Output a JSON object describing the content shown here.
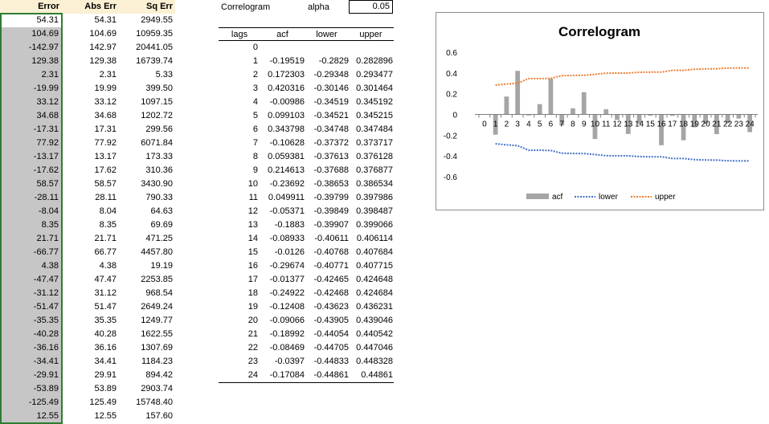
{
  "error_table": {
    "headers": {
      "error": "Error",
      "abs_err": "Abs Err",
      "sq_err": "Sq Err"
    },
    "rows": [
      {
        "error": "54.31",
        "abs": "54.31",
        "sq": "2949.55"
      },
      {
        "error": "104.69",
        "abs": "104.69",
        "sq": "10959.35"
      },
      {
        "error": "-142.97",
        "abs": "142.97",
        "sq": "20441.05"
      },
      {
        "error": "129.38",
        "abs": "129.38",
        "sq": "16739.74"
      },
      {
        "error": "2.31",
        "abs": "2.31",
        "sq": "5.33"
      },
      {
        "error": "-19.99",
        "abs": "19.99",
        "sq": "399.50"
      },
      {
        "error": "33.12",
        "abs": "33.12",
        "sq": "1097.15"
      },
      {
        "error": "34.68",
        "abs": "34.68",
        "sq": "1202.72"
      },
      {
        "error": "-17.31",
        "abs": "17.31",
        "sq": "299.56"
      },
      {
        "error": "77.92",
        "abs": "77.92",
        "sq": "6071.84"
      },
      {
        "error": "-13.17",
        "abs": "13.17",
        "sq": "173.33"
      },
      {
        "error": "-17.62",
        "abs": "17.62",
        "sq": "310.36"
      },
      {
        "error": "58.57",
        "abs": "58.57",
        "sq": "3430.90"
      },
      {
        "error": "-28.11",
        "abs": "28.11",
        "sq": "790.33"
      },
      {
        "error": "-8.04",
        "abs": "8.04",
        "sq": "64.63"
      },
      {
        "error": "8.35",
        "abs": "8.35",
        "sq": "69.69"
      },
      {
        "error": "21.71",
        "abs": "21.71",
        "sq": "471.25"
      },
      {
        "error": "-66.77",
        "abs": "66.77",
        "sq": "4457.80"
      },
      {
        "error": "4.38",
        "abs": "4.38",
        "sq": "19.19"
      },
      {
        "error": "-47.47",
        "abs": "47.47",
        "sq": "2253.85"
      },
      {
        "error": "-31.12",
        "abs": "31.12",
        "sq": "968.54"
      },
      {
        "error": "-51.47",
        "abs": "51.47",
        "sq": "2649.24"
      },
      {
        "error": "-35.35",
        "abs": "35.35",
        "sq": "1249.77"
      },
      {
        "error": "-40.28",
        "abs": "40.28",
        "sq": "1622.55"
      },
      {
        "error": "-36.16",
        "abs": "36.16",
        "sq": "1307.69"
      },
      {
        "error": "-34.41",
        "abs": "34.41",
        "sq": "1184.23"
      },
      {
        "error": "-29.91",
        "abs": "29.91",
        "sq": "894.42"
      },
      {
        "error": "-53.89",
        "abs": "53.89",
        "sq": "2903.74"
      },
      {
        "error": "-125.49",
        "abs": "125.49",
        "sq": "15748.40"
      },
      {
        "error": "12.55",
        "abs": "12.55",
        "sq": "157.60"
      }
    ]
  },
  "correlogram_label": "Correlogram",
  "alpha": {
    "label": "alpha",
    "value": "0.05"
  },
  "acf_table": {
    "headers": {
      "lags": "lags",
      "acf": "acf",
      "lower": "lower",
      "upper": "upper"
    },
    "rows": [
      {
        "lag": "0",
        "acf": "",
        "lower": "",
        "upper": ""
      },
      {
        "lag": "1",
        "acf": "-0.19519",
        "lower": "-0.2829",
        "upper": "0.282896"
      },
      {
        "lag": "2",
        "acf": "0.172303",
        "lower": "-0.29348",
        "upper": "0.293477"
      },
      {
        "lag": "3",
        "acf": "0.420316",
        "lower": "-0.30146",
        "upper": "0.301464"
      },
      {
        "lag": "4",
        "acf": "-0.00986",
        "lower": "-0.34519",
        "upper": "0.345192"
      },
      {
        "lag": "5",
        "acf": "0.099103",
        "lower": "-0.34521",
        "upper": "0.345215"
      },
      {
        "lag": "6",
        "acf": "0.343798",
        "lower": "-0.34748",
        "upper": "0.347484"
      },
      {
        "lag": "7",
        "acf": "-0.10628",
        "lower": "-0.37372",
        "upper": "0.373717"
      },
      {
        "lag": "8",
        "acf": "0.059381",
        "lower": "-0.37613",
        "upper": "0.376128"
      },
      {
        "lag": "9",
        "acf": "0.214613",
        "lower": "-0.37688",
        "upper": "0.376877"
      },
      {
        "lag": "10",
        "acf": "-0.23692",
        "lower": "-0.38653",
        "upper": "0.386534"
      },
      {
        "lag": "11",
        "acf": "0.049911",
        "lower": "-0.39799",
        "upper": "0.397986"
      },
      {
        "lag": "12",
        "acf": "-0.05371",
        "lower": "-0.39849",
        "upper": "0.398487"
      },
      {
        "lag": "13",
        "acf": "-0.1883",
        "lower": "-0.39907",
        "upper": "0.399066"
      },
      {
        "lag": "14",
        "acf": "-0.08933",
        "lower": "-0.40611",
        "upper": "0.406114"
      },
      {
        "lag": "15",
        "acf": "-0.0126",
        "lower": "-0.40768",
        "upper": "0.407684"
      },
      {
        "lag": "16",
        "acf": "-0.29674",
        "lower": "-0.40771",
        "upper": "0.407715"
      },
      {
        "lag": "17",
        "acf": "-0.01377",
        "lower": "-0.42465",
        "upper": "0.424648"
      },
      {
        "lag": "18",
        "acf": "-0.24922",
        "lower": "-0.42468",
        "upper": "0.424684"
      },
      {
        "lag": "19",
        "acf": "-0.12408",
        "lower": "-0.43623",
        "upper": "0.436231"
      },
      {
        "lag": "20",
        "acf": "-0.09066",
        "lower": "-0.43905",
        "upper": "0.439046"
      },
      {
        "lag": "21",
        "acf": "-0.18992",
        "lower": "-0.44054",
        "upper": "0.440542"
      },
      {
        "lag": "22",
        "acf": "-0.08469",
        "lower": "-0.44705",
        "upper": "0.447046"
      },
      {
        "lag": "23",
        "acf": "-0.0397",
        "lower": "-0.44833",
        "upper": "0.448328"
      },
      {
        "lag": "24",
        "acf": "-0.17084",
        "lower": "-0.44861",
        "upper": "0.44861"
      }
    ]
  },
  "chart_data": {
    "type": "bar",
    "title": "Correlogram",
    "xlabel": "",
    "ylabel": "",
    "categories": [
      "0",
      "1",
      "2",
      "3",
      "4",
      "5",
      "6",
      "7",
      "8",
      "9",
      "10",
      "11",
      "12",
      "13",
      "14",
      "15",
      "16",
      "17",
      "18",
      "19",
      "20",
      "21",
      "22",
      "23",
      "24"
    ],
    "series": [
      {
        "name": "acf",
        "type": "bar",
        "color": "#a5a5a5",
        "values": [
          null,
          -0.19519,
          0.172303,
          0.420316,
          -0.00986,
          0.099103,
          0.343798,
          -0.10628,
          0.059381,
          0.214613,
          -0.23692,
          0.049911,
          -0.05371,
          -0.1883,
          -0.08933,
          -0.0126,
          -0.29674,
          -0.01377,
          -0.24922,
          -0.12408,
          -0.09066,
          -0.18992,
          -0.08469,
          -0.0397,
          -0.17084
        ]
      },
      {
        "name": "lower",
        "type": "line",
        "style": "dotted",
        "color": "#4472c4",
        "values": [
          null,
          -0.2829,
          -0.29348,
          -0.30146,
          -0.34519,
          -0.34521,
          -0.34748,
          -0.37372,
          -0.37613,
          -0.37688,
          -0.38653,
          -0.39799,
          -0.39849,
          -0.39907,
          -0.40611,
          -0.40768,
          -0.40771,
          -0.42465,
          -0.42468,
          -0.43623,
          -0.43905,
          -0.44054,
          -0.44705,
          -0.44833,
          -0.44861
        ]
      },
      {
        "name": "upper",
        "type": "line",
        "style": "dotted",
        "color": "#ed7d31",
        "values": [
          null,
          0.282896,
          0.293477,
          0.301464,
          0.345192,
          0.345215,
          0.347484,
          0.373717,
          0.376128,
          0.376877,
          0.386534,
          0.397986,
          0.398487,
          0.399066,
          0.406114,
          0.407684,
          0.407715,
          0.424648,
          0.424684,
          0.436231,
          0.439046,
          0.440542,
          0.447046,
          0.448328,
          0.44861
        ]
      }
    ],
    "yticks": [
      "0.6",
      "0.4",
      "0.2",
      "0",
      "-0.2",
      "-0.4",
      "-0.6"
    ],
    "ylim": [
      -0.6,
      0.6
    ],
    "grid": false,
    "legend": "bottom"
  }
}
